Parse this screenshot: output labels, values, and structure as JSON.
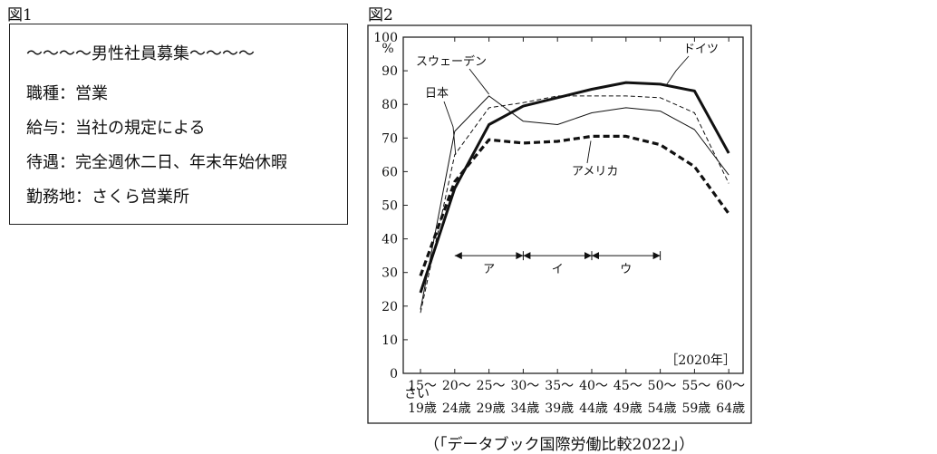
{
  "figure1": {
    "label": "図1",
    "ad_lines": [
      "～～～～男性社員募集～～～～",
      "職種：営業",
      "給与：当社の規定による",
      "待遇：完全週休二日、年末年始休暇",
      "勤務地：さくら営業所"
    ]
  },
  "figure2": {
    "label": "図2",
    "source": "（「データブック国際労働比較2022」）"
  },
  "chart_data": {
    "type": "line",
    "categories": [
      "15～19歳",
      "20～24歳",
      "25～29歳",
      "30～34歳",
      "35～39歳",
      "40～44歳",
      "45～49歳",
      "50～54歳",
      "55～59歳",
      "60～64歳"
    ],
    "category_top": [
      "15～",
      "20～",
      "25～",
      "30～",
      "35～",
      "40～",
      "45～",
      "50～",
      "55～",
      "60～"
    ],
    "category_bottom": [
      "19歳",
      "24歳",
      "29歳",
      "34歳",
      "39歳",
      "44歳",
      "49歳",
      "54歳",
      "59歳",
      "64歳"
    ],
    "furigana": "さい",
    "ylabel": "%",
    "ylim": [
      0,
      100
    ],
    "yticks": [
      0,
      10,
      20,
      30,
      40,
      50,
      60,
      70,
      80,
      90,
      100
    ],
    "series": [
      {
        "name": "ドイツ",
        "style": "thick-solid",
        "values": [
          24,
          55,
          74,
          79.5,
          82,
          84.5,
          86.5,
          86,
          84,
          65.5
        ]
      },
      {
        "name": "スウェーデン",
        "style": "thin-solid",
        "values": [
          19,
          72,
          82.5,
          75,
          74,
          77.5,
          79,
          78,
          72.5,
          59
        ]
      },
      {
        "name": "日本",
        "style": "thin-dashed",
        "values": [
          18,
          65,
          79,
          80.5,
          82.5,
          82.5,
          82.5,
          82,
          77.5,
          56.5
        ]
      },
      {
        "name": "アメリカ",
        "style": "thick-dashed",
        "values": [
          29,
          57,
          69.5,
          68.5,
          69,
          70.5,
          70.5,
          68,
          61.5,
          47.5
        ]
      }
    ],
    "year_note": "［2020年］",
    "ranges": [
      {
        "label": "ア",
        "from": 1,
        "to": 3
      },
      {
        "label": "イ",
        "from": 3,
        "to": 5
      },
      {
        "label": "ウ",
        "from": 5,
        "to": 7
      }
    ],
    "range_y": 35,
    "grid": false
  }
}
